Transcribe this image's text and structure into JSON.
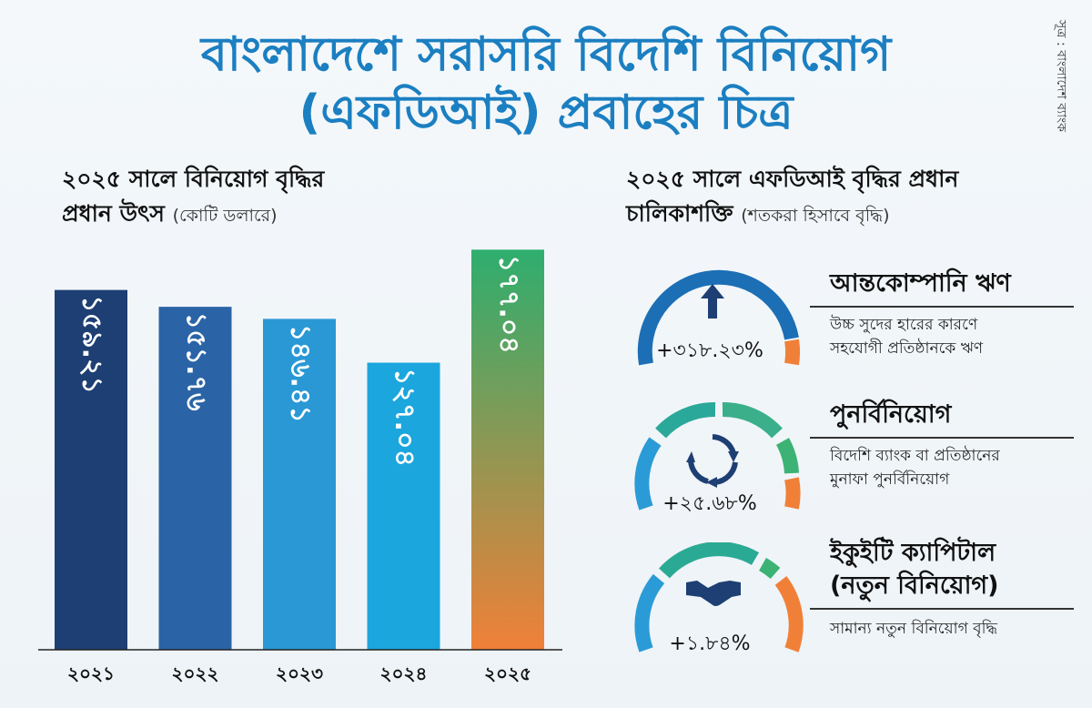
{
  "header": {
    "title_line1": "বাংলাদেশে সরাসরি বিদেশি বিনিয়োগ",
    "title_line2": "(এফডিআই) প্রবাহের চিত্র",
    "source": "সূত্র : বাংলাদেশ ব্যাংক"
  },
  "left_section": {
    "title_line1": "২০২৫ সালে বিনিয়োগ বৃদ্ধির",
    "title_line2": "প্রধান উৎস",
    "unit_note": "(কোটি ডলারে)"
  },
  "right_section": {
    "title_line1": "২০২৫ সালে এফডিআই বৃদ্ধির প্রধান",
    "title_line2": "চালিকাশক্তি",
    "unit_note": "(শতকরা হিসাবে বৃদ্ধি)"
  },
  "drivers": [
    {
      "title": "আন্তকোম্পানি ঋণ",
      "desc_line1": "উচ্চ সুদের হারের কারণে",
      "desc_line2": "সহযোগী প্রতিষ্ঠানকে ঋণ",
      "value_label": "+৩১৮.২৩%",
      "icon": "arrow-up-icon"
    },
    {
      "title": "পুনর্বিনিয়োগ",
      "desc_line1": "বিদেশি ব্যাংক বা প্রতিষ্ঠানের",
      "desc_line2": "মুনাফা পুনর্বিনিয়োগ",
      "value_label": "+২৫.৬৮%",
      "icon": "recycle-icon"
    },
    {
      "title_line1": "ইকুইটি ক্যাপিটাল",
      "title_line2": "(নতুন বিনিয়োগ)",
      "desc_line1": "সামান্য নতুন বিনিয়োগ বৃদ্ধি",
      "value_label": "+১.৮৪%",
      "icon": "handshake-icon"
    }
  ],
  "chart_data": {
    "type": "bar",
    "categories": [
      "২০২১",
      "২০২২",
      "২০২৩",
      "২০২৪",
      "২০২৫"
    ],
    "values": [
      159.21,
      151.76,
      146.41,
      127.04,
      177.04
    ],
    "value_labels": [
      "১৫৯.২১",
      "১৫১.৭৬",
      "১৪৬.৪১",
      "১২৭.০৪",
      "১৭৭.০৪"
    ],
    "colors": [
      "#1d3f73",
      "#2a64a6",
      "#2a98d5",
      "#1ba6dd",
      "#2eae6e"
    ],
    "last_bar_gradient": [
      "#2eae6e",
      "#f08038"
    ],
    "ylim": [
      0,
      180
    ]
  }
}
